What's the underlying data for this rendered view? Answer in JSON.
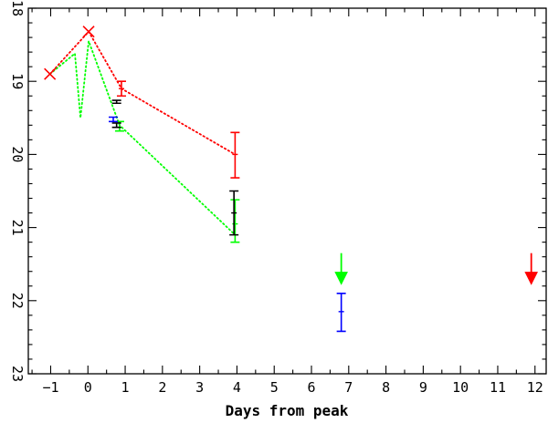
{
  "chart_data": {
    "type": "line",
    "title": "",
    "xlabel": "Days from peak",
    "ylabel": "",
    "xlim": [
      -1.6,
      12.3
    ],
    "ylim": [
      23,
      18
    ],
    "y_inverted": true,
    "grid": false,
    "x_ticks": [
      -1,
      0,
      1,
      2,
      3,
      4,
      5,
      6,
      7,
      8,
      9,
      10,
      11,
      12
    ],
    "y_ticks": [
      18,
      19,
      20,
      21,
      22,
      23
    ],
    "x_tick_labels": [
      "−1",
      "0",
      "1",
      "2",
      "3",
      "4",
      "5",
      "6",
      "7",
      "8",
      "9",
      "10",
      "11",
      "12"
    ],
    "y_tick_labels": [
      "18",
      "19",
      "20",
      "21",
      "22",
      "23"
    ],
    "series": [
      {
        "color": "#ff0000",
        "line": [
          [
            -1.02,
            18.9
          ],
          [
            0.02,
            18.32
          ],
          [
            0.9,
            19.1
          ],
          [
            3.95,
            20.0
          ]
        ],
        "crosses": [
          [
            -1.02,
            18.9
          ],
          [
            0.02,
            18.32
          ]
        ],
        "errorbars": [
          {
            "x": 0.9,
            "y": 19.1,
            "ylo": 19.0,
            "yhi": 19.2
          },
          {
            "x": 3.95,
            "y": 20.0,
            "ylo": 19.7,
            "yhi": 20.32
          }
        ],
        "upper_limits": [
          {
            "x": 11.9,
            "y": 21.35
          }
        ]
      },
      {
        "color": "#00ff00",
        "line": [
          [
            -1.02,
            18.9
          ],
          [
            -0.35,
            18.62
          ],
          [
            -0.2,
            19.5
          ],
          [
            0.02,
            18.45
          ],
          [
            0.85,
            19.6
          ],
          [
            3.95,
            21.1
          ]
        ],
        "crosses": [],
        "errorbars": [
          {
            "x": 0.85,
            "y": 19.62,
            "ylo": 19.55,
            "yhi": 19.68
          },
          {
            "x": 3.95,
            "y": 20.95,
            "ylo": 20.62,
            "yhi": 21.2
          }
        ],
        "upper_limits": [
          {
            "x": 6.8,
            "y": 21.35
          }
        ]
      },
      {
        "color": "#000000",
        "line": [],
        "crosses": [],
        "errorbars": [
          {
            "x": 0.77,
            "y": 19.28,
            "ylo": 19.26,
            "yhi": 19.3
          },
          {
            "x": 0.77,
            "y": 19.6,
            "ylo": 19.57,
            "yhi": 19.63
          },
          {
            "x": 3.92,
            "y": 20.8,
            "ylo": 20.5,
            "yhi": 21.1
          }
        ],
        "upper_limits": []
      },
      {
        "color": "#0000ff",
        "line": [],
        "crosses": [],
        "errorbars": [
          {
            "x": 0.68,
            "y": 19.52,
            "ylo": 19.49,
            "yhi": 19.55
          },
          {
            "x": 6.8,
            "y": 22.15,
            "ylo": 21.9,
            "yhi": 22.42
          }
        ],
        "upper_limits": []
      }
    ]
  }
}
